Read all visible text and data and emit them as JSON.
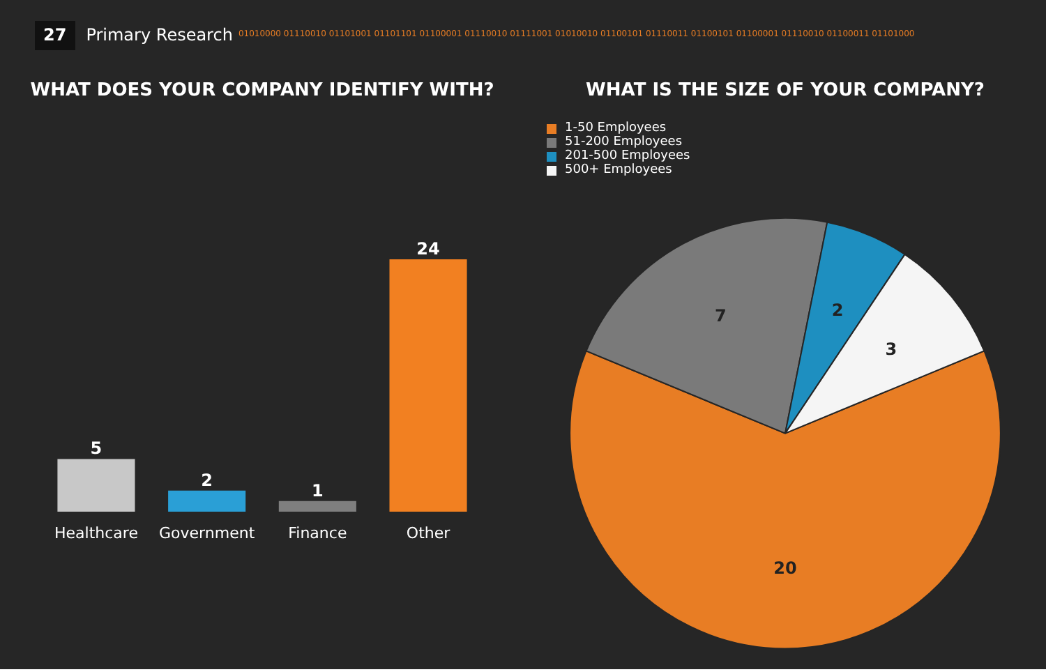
{
  "chart_data": [
    {
      "type": "bar",
      "title": "WHAT DOES YOUR COMPANY IDENTIFY WITH?",
      "categories": [
        "Healthcare",
        "Government",
        "Finance",
        "Other"
      ],
      "values": [
        5,
        2,
        1,
        24
      ],
      "colors": [
        "#c8c8c8",
        "#2a9fd6",
        "#7f7f7f",
        "#f28021"
      ],
      "data_labels": true,
      "annotations": [
        "27",
        "Primary Research",
        "01010000 01110010 01101001 01101101 01100001 01110010 01111001 01010010 01100101 01110011 01100101 01100001 01110010 01100011 01101000"
      ]
    },
    {
      "type": "pie",
      "title": "WHAT IS THE SIZE OF YOUR COMPANY?",
      "categories": [
        "1-50 Employees",
        "51-200 Employees",
        "201-500 Employees",
        "500+ Employees"
      ],
      "values": [
        20,
        7,
        2,
        3
      ],
      "colors": [
        "#e87d24",
        "#7a7a7a",
        "#1e8fc0",
        "#f5f5f5"
      ],
      "data_labels": true,
      "legend": "top left"
    }
  ]
}
